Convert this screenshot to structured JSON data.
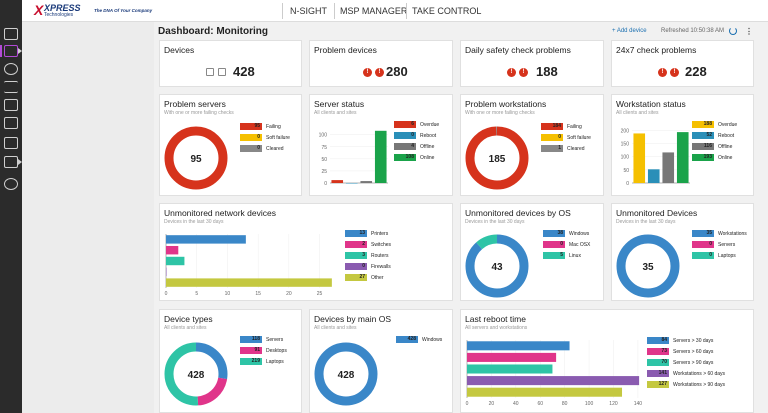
{
  "app": {
    "logo_main": "XPRESS",
    "logo_sub": "Technologies",
    "logo_tag": "The DNA Of Your Company",
    "nav": [
      "N-SIGHT",
      "MSP MANAGER",
      "TAKE CONTROL"
    ]
  },
  "header": {
    "title": "Dashboard: Monitoring",
    "add_device": "+ Add device",
    "refreshed": "Refreshed 10:50:38 AM"
  },
  "colors": {
    "failing": "#d6331c",
    "soft": "#f5c000",
    "cleared": "#888888",
    "overdue": "#f5c000",
    "reboot": "#2a8fb8",
    "offline": "#777777",
    "online": "#1aa34a",
    "blue": "#3a87c8",
    "pink": "#e0358a",
    "teal": "#2ec4a6",
    "purple": "#8a5bb0",
    "olive": "#c4c840"
  },
  "summary": [
    {
      "title": "Devices",
      "value": "428"
    },
    {
      "title": "Problem devices",
      "value": "280"
    },
    {
      "title": "Daily safety check problems",
      "value": "188"
    },
    {
      "title": "24x7 check problems",
      "value": "228"
    }
  ],
  "problem_servers": {
    "title": "Problem servers",
    "sub": "With one or more failing checks",
    "center": "95",
    "legend": [
      {
        "label": "Failing",
        "value": "95",
        "color": "#d6331c"
      },
      {
        "label": "Soft failure",
        "value": "0",
        "color": "#f5c000"
      },
      {
        "label": "Cleared",
        "value": "0",
        "color": "#888888"
      }
    ]
  },
  "server_status": {
    "title": "Server status",
    "sub": "All clients and sites",
    "legend": [
      {
        "label": "Overdue",
        "value": "6",
        "color": "#d6331c"
      },
      {
        "label": "Reboot",
        "value": "0",
        "color": "#2a8fb8"
      },
      {
        "label": "Offline",
        "value": "4",
        "color": "#777777"
      },
      {
        "label": "Online",
        "value": "108",
        "color": "#1aa34a"
      }
    ]
  },
  "problem_workstations": {
    "title": "Problem workstations",
    "sub": "With one or more failing checks",
    "center": "185",
    "legend": [
      {
        "label": "Failing",
        "value": "184",
        "color": "#d6331c"
      },
      {
        "label": "Soft failure",
        "value": "0",
        "color": "#f5c000"
      },
      {
        "label": "Cleared",
        "value": "1",
        "color": "#888888"
      }
    ]
  },
  "workstation_status": {
    "title": "Workstation status",
    "sub": "All clients and sites",
    "legend": [
      {
        "label": "Overdue",
        "value": "188",
        "color": "#f5c000"
      },
      {
        "label": "Reboot",
        "value": "52",
        "color": "#2a8fb8"
      },
      {
        "label": "Offline",
        "value": "116",
        "color": "#777777"
      },
      {
        "label": "Online",
        "value": "193",
        "color": "#1aa34a"
      }
    ]
  },
  "unmonitored_network": {
    "title": "Unmonitored network devices",
    "sub": "Devices in the last 30 days",
    "legend": [
      {
        "label": "Printers",
        "value": "13",
        "color": "#3a87c8"
      },
      {
        "label": "Switches",
        "value": "2",
        "color": "#e0358a"
      },
      {
        "label": "Routers",
        "value": "3",
        "color": "#2ec4a6"
      },
      {
        "label": "Firewalls",
        "value": "0",
        "color": "#8a5bb0"
      },
      {
        "label": "Other",
        "value": "27",
        "color": "#c4c840"
      }
    ]
  },
  "unmonitored_by_os": {
    "title": "Unmonitored devices by OS",
    "sub": "Devices in the last 30 days",
    "center": "43",
    "legend": [
      {
        "label": "Windows",
        "value": "38",
        "color": "#3a87c8"
      },
      {
        "label": "Mac OSX",
        "value": "0",
        "color": "#e0358a"
      },
      {
        "label": "Linux",
        "value": "5",
        "color": "#2ec4a6"
      }
    ]
  },
  "unmonitored_devices": {
    "title": "Unmonitored Devices",
    "sub": "Devices in the last 30 days",
    "center": "35",
    "legend": [
      {
        "label": "Workstations",
        "value": "35",
        "color": "#3a87c8"
      },
      {
        "label": "Servers",
        "value": "0",
        "color": "#e0358a"
      },
      {
        "label": "Laptops",
        "value": "0",
        "color": "#2ec4a6"
      }
    ]
  },
  "device_types": {
    "title": "Device types",
    "sub": "All clients and sites",
    "center": "428",
    "legend": [
      {
        "label": "Servers",
        "value": "118",
        "color": "#3a87c8"
      },
      {
        "label": "Desktops",
        "value": "91",
        "color": "#e0358a"
      },
      {
        "label": "Laptops",
        "value": "219",
        "color": "#2ec4a6"
      }
    ]
  },
  "devices_by_os": {
    "title": "Devices by main OS",
    "sub": "All clients and sites",
    "center": "428",
    "legend": [
      {
        "label": "Windows",
        "value": "428",
        "color": "#3a87c8"
      }
    ]
  },
  "last_reboot": {
    "title": "Last reboot time",
    "sub": "All servers and workstations",
    "legend": [
      {
        "label": "Servers > 30 days",
        "value": "84",
        "color": "#3a87c8"
      },
      {
        "label": "Servers > 60 days",
        "value": "73",
        "color": "#e0358a"
      },
      {
        "label": "Servers > 90 days",
        "value": "70",
        "color": "#2ec4a6"
      },
      {
        "label": "Workstations > 60 days",
        "value": "141",
        "color": "#8a5bb0"
      },
      {
        "label": "Workstations > 90 days",
        "value": "127",
        "color": "#c4c840"
      }
    ]
  },
  "chart_data": [
    {
      "type": "pie",
      "title": "Problem servers",
      "categories": [
        "Failing",
        "Soft failure",
        "Cleared"
      ],
      "values": [
        95,
        0,
        0
      ]
    },
    {
      "type": "bar",
      "title": "Server status",
      "categories": [
        "Overdue",
        "Reboot",
        "Offline",
        "Online"
      ],
      "values": [
        6,
        0,
        4,
        108
      ],
      "ylim": [
        0,
        120
      ],
      "yticks": [
        "0",
        "25",
        "50",
        "75",
        "100"
      ]
    },
    {
      "type": "pie",
      "title": "Problem workstations",
      "categories": [
        "Failing",
        "Soft failure",
        "Cleared"
      ],
      "values": [
        184,
        0,
        1
      ]
    },
    {
      "type": "bar",
      "title": "Workstation status",
      "categories": [
        "Overdue",
        "Reboot",
        "Offline",
        "Online"
      ],
      "values": [
        188,
        52,
        116,
        193
      ],
      "ylim": [
        0,
        220
      ],
      "yticks": [
        "0",
        "50",
        "100",
        "150",
        "200"
      ]
    },
    {
      "type": "bar",
      "orientation": "horizontal",
      "title": "Unmonitored network devices",
      "categories": [
        "Printers",
        "Switches",
        "Routers",
        "Firewalls",
        "Other"
      ],
      "values": [
        13,
        2,
        3,
        0,
        27
      ],
      "xlim": [
        0,
        28
      ],
      "xticks": [
        "0",
        "5",
        "10",
        "15",
        "20",
        "25"
      ]
    },
    {
      "type": "pie",
      "title": "Unmonitored devices by OS",
      "categories": [
        "Windows",
        "Mac OSX",
        "Linux"
      ],
      "values": [
        38,
        0,
        5
      ]
    },
    {
      "type": "pie",
      "title": "Unmonitored Devices",
      "categories": [
        "Workstations",
        "Servers",
        "Laptops"
      ],
      "values": [
        35,
        0,
        0
      ]
    },
    {
      "type": "pie",
      "title": "Device types",
      "categories": [
        "Servers",
        "Desktops",
        "Laptops"
      ],
      "values": [
        118,
        91,
        219
      ]
    },
    {
      "type": "pie",
      "title": "Devices by main OS",
      "categories": [
        "Windows"
      ],
      "values": [
        428
      ]
    },
    {
      "type": "bar",
      "orientation": "horizontal",
      "title": "Last reboot time",
      "categories": [
        "Servers > 30 days",
        "Servers > 60 days",
        "Servers > 90 days",
        "Workstations > 60 days",
        "Workstations > 90 days"
      ],
      "values": [
        84,
        73,
        70,
        141,
        127
      ],
      "xlim": [
        0,
        145
      ],
      "xticks": [
        "0",
        "20",
        "40",
        "60",
        "80",
        "100",
        "120",
        "140"
      ]
    }
  ]
}
